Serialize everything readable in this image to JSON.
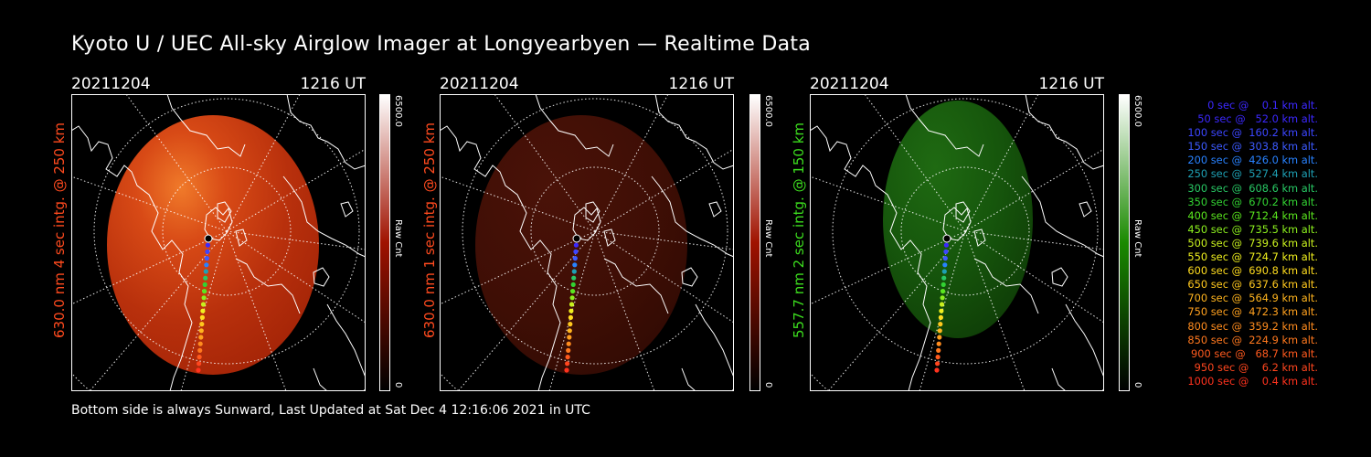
{
  "title": "Kyoto U / UEC All-sky Airglow Imager at Longyearbyen — Realtime Data",
  "footer": "Bottom side is always Sunward, Last Updated at Sat Dec  4 12:16:06 2021 in UTC",
  "colorbar_units": "Raw Cnt",
  "panels": [
    {
      "date": "20211204",
      "time": "1216 UT",
      "side_label": "630.0 nm 4 sec intg. @ 250 km",
      "colorbar_max": "6500.0",
      "colorbar_min": "0",
      "label_color": "#ff4a1e",
      "colorbar_color": "#a01200",
      "brightness": 0.85
    },
    {
      "date": "20211204",
      "time": "1216 UT",
      "side_label": "630.0 nm 1 sec intg. @ 250 km",
      "colorbar_max": "6500.0",
      "colorbar_min": "0",
      "label_color": "#ff4a1e",
      "colorbar_color": "#a01200",
      "brightness": 0.28
    },
    {
      "date": "20211204",
      "time": "1216 UT",
      "side_label": "557.7 nm 2 sec intg. @ 150 km",
      "colorbar_max": "6500.0",
      "colorbar_min": "0",
      "label_color": "#3cdc1e",
      "colorbar_color": "#1a8a00",
      "brightness": 0.3
    }
  ],
  "legend": [
    {
      "text": "0 sec @    0.1 km alt.",
      "color": "#3c28ff"
    },
    {
      "text": "50 sec @   52.0 km alt.",
      "color": "#3c28ff"
    },
    {
      "text": "100 sec @  160.2 km alt.",
      "color": "#3c46ff"
    },
    {
      "text": "150 sec @  303.8 km alt.",
      "color": "#3c5aff"
    },
    {
      "text": "200 sec @  426.0 km alt.",
      "color": "#2882ff"
    },
    {
      "text": "250 sec @  527.4 km alt.",
      "color": "#1ea0b4"
    },
    {
      "text": "300 sec @  608.6 km alt.",
      "color": "#28c864"
    },
    {
      "text": "350 sec @  670.2 km alt.",
      "color": "#32d232"
    },
    {
      "text": "400 sec @  712.4 km alt.",
      "color": "#5ae61e"
    },
    {
      "text": "450 sec @  735.5 km alt.",
      "color": "#8cf01e"
    },
    {
      "text": "500 sec @  739.6 km alt.",
      "color": "#c8f01e"
    },
    {
      "text": "550 sec @  724.7 km alt.",
      "color": "#f0f01e"
    },
    {
      "text": "600 sec @  690.8 km alt.",
      "color": "#ffdc1e"
    },
    {
      "text": "650 sec @  637.6 km alt.",
      "color": "#ffc81e"
    },
    {
      "text": "700 sec @  564.9 km alt.",
      "color": "#ffb41e"
    },
    {
      "text": "750 sec @  472.3 km alt.",
      "color": "#ffa01e"
    },
    {
      "text": "800 sec @  359.2 km alt.",
      "color": "#ff8c1e"
    },
    {
      "text": "850 sec @  224.9 km alt.",
      "color": "#ff781e"
    },
    {
      "text": "900 sec @   68.7 km alt.",
      "color": "#ff5a1e"
    },
    {
      "text": "950 sec @    6.2 km alt.",
      "color": "#ff461e"
    },
    {
      "text": "1000 sec @    0.4 km alt.",
      "color": "#ff321e"
    }
  ]
}
